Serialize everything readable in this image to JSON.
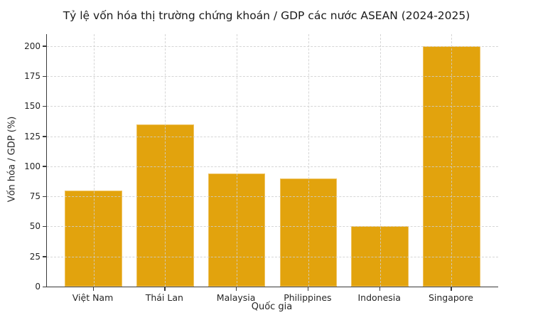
{
  "chart_data": {
    "type": "bar",
    "title": "Tỷ lệ vốn hóa thị trường chứng khoán / GDP các nước ASEAN (2024-2025)",
    "xlabel": "Quốc gia",
    "ylabel": "Vốn hóa / GDP (%)",
    "categories": [
      "Việt Nam",
      "Thái Lan",
      "Malaysia",
      "Philippines",
      "Indonesia",
      "Singapore"
    ],
    "values": [
      80,
      135,
      94,
      90,
      50,
      200
    ],
    "yticks": [
      0,
      25,
      50,
      75,
      100,
      125,
      150,
      175,
      200
    ],
    "ylim": [
      0,
      210
    ],
    "grid": "dashed, horizontal and vertical, drawn above bars",
    "legend": "none",
    "colors": {
      "bar_fill": "#E2A30D",
      "bar_edge": "#EFC25F",
      "grid_line": "#cfcfcf",
      "spine": "#3a3a3a",
      "text": "#262626",
      "background": "#ffffff"
    }
  }
}
